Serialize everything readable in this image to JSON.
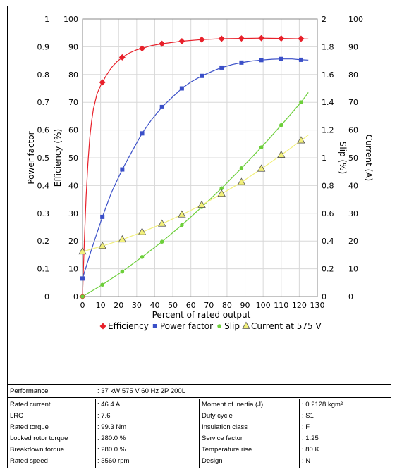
{
  "chart_data": {
    "type": "line",
    "xlabel": "Percent of rated output",
    "x_ticks": [
      "0",
      "10",
      "20",
      "30",
      "40",
      "50",
      "60",
      "70",
      "80",
      "90",
      "100",
      "110",
      "120",
      "130"
    ],
    "xlim": [
      0,
      130
    ],
    "axes": {
      "power_factor": {
        "label": "Power factor",
        "ticks": [
          "0",
          "0.1",
          "0.2",
          "0.3",
          "0.4",
          "0.5",
          "0.6",
          "0.7",
          "0.8",
          "0.9",
          "1"
        ],
        "range": [
          0,
          1
        ]
      },
      "efficiency": {
        "label": "Efficiency (%)",
        "ticks": [
          "0",
          "10",
          "20",
          "30",
          "40",
          "50",
          "60",
          "70",
          "80",
          "90",
          "100"
        ],
        "range": [
          0,
          100
        ]
      },
      "slip": {
        "label": "Slip (%)",
        "ticks": [
          "0",
          "0.2",
          "0.4",
          "0.6",
          "0.8",
          "1",
          "1.2",
          "1.4",
          "1.6",
          "1.8",
          "2"
        ],
        "range": [
          0,
          2
        ]
      },
      "current": {
        "label": "Current (A)",
        "ticks": [
          "0",
          "10",
          "20",
          "30",
          "40",
          "50",
          "60",
          "70",
          "80",
          "90",
          "100"
        ],
        "range": [
          0,
          100
        ]
      }
    },
    "series": [
      {
        "name": "Efficiency",
        "axis": "efficiency",
        "color": "#e8202a",
        "marker": "diamond",
        "points": [
          [
            0,
            0
          ],
          [
            11,
            77.2
          ],
          [
            22,
            86.2
          ],
          [
            33,
            89.4
          ],
          [
            44,
            91.1
          ],
          [
            55,
            92.0
          ],
          [
            66,
            92.6
          ],
          [
            77,
            92.9
          ],
          [
            88,
            93.0
          ],
          [
            99,
            93.1
          ],
          [
            110,
            93.0
          ],
          [
            121,
            92.9
          ]
        ],
        "curve": [
          [
            0,
            0
          ],
          [
            1,
            20
          ],
          [
            2,
            36
          ],
          [
            3,
            48
          ],
          [
            4,
            57
          ],
          [
            5,
            63
          ],
          [
            6,
            67.5
          ],
          [
            8,
            73
          ],
          [
            10,
            76
          ],
          [
            11,
            77.2
          ],
          [
            13,
            79.5
          ],
          [
            16,
            82.5
          ],
          [
            19,
            84.6
          ],
          [
            22,
            86.2
          ],
          [
            26,
            87.8
          ],
          [
            30,
            88.9
          ],
          [
            33,
            89.4
          ],
          [
            38,
            90.4
          ],
          [
            44,
            91.1
          ],
          [
            50,
            91.6
          ],
          [
            55,
            92.0
          ],
          [
            66,
            92.6
          ],
          [
            77,
            92.9
          ],
          [
            88,
            93.0
          ],
          [
            99,
            93.1
          ],
          [
            110,
            93.0
          ],
          [
            125,
            92.8
          ]
        ]
      },
      {
        "name": "Power factor",
        "axis": "power_factor",
        "color": "#3a4fc8",
        "marker": "square",
        "points": [
          [
            0,
            0.065
          ],
          [
            11,
            0.287
          ],
          [
            22,
            0.458
          ],
          [
            33,
            0.588
          ],
          [
            44,
            0.683
          ],
          [
            55,
            0.75
          ],
          [
            66,
            0.795
          ],
          [
            77,
            0.825
          ],
          [
            88,
            0.843
          ],
          [
            99,
            0.852
          ],
          [
            110,
            0.856
          ],
          [
            121,
            0.853
          ]
        ],
        "curve": [
          [
            0,
            0.065
          ],
          [
            5,
            0.17
          ],
          [
            11,
            0.287
          ],
          [
            16,
            0.375
          ],
          [
            22,
            0.458
          ],
          [
            28,
            0.53
          ],
          [
            33,
            0.588
          ],
          [
            38,
            0.635
          ],
          [
            44,
            0.683
          ],
          [
            50,
            0.72
          ],
          [
            55,
            0.75
          ],
          [
            60,
            0.773
          ],
          [
            66,
            0.795
          ],
          [
            72,
            0.812
          ],
          [
            77,
            0.825
          ],
          [
            83,
            0.836
          ],
          [
            88,
            0.843
          ],
          [
            94,
            0.849
          ],
          [
            99,
            0.852
          ],
          [
            105,
            0.855
          ],
          [
            110,
            0.856
          ],
          [
            116,
            0.856
          ],
          [
            121,
            0.853
          ],
          [
            125,
            0.852
          ]
        ]
      },
      {
        "name": "Slip",
        "axis": "slip",
        "color": "#6ccf3a",
        "marker": "circle",
        "points": [
          [
            0,
            0
          ],
          [
            11,
            0.085
          ],
          [
            22,
            0.18
          ],
          [
            33,
            0.285
          ],
          [
            44,
            0.395
          ],
          [
            55,
            0.515
          ],
          [
            66,
            0.645
          ],
          [
            77,
            0.78
          ],
          [
            88,
            0.925
          ],
          [
            99,
            1.075
          ],
          [
            110,
            1.235
          ],
          [
            121,
            1.4
          ]
        ],
        "curve": [
          [
            0,
            0
          ],
          [
            11,
            0.085
          ],
          [
            22,
            0.18
          ],
          [
            33,
            0.285
          ],
          [
            44,
            0.395
          ],
          [
            55,
            0.515
          ],
          [
            66,
            0.645
          ],
          [
            77,
            0.78
          ],
          [
            88,
            0.925
          ],
          [
            99,
            1.075
          ],
          [
            110,
            1.235
          ],
          [
            121,
            1.4
          ],
          [
            125,
            1.47
          ]
        ]
      },
      {
        "name": "Current at 575 V",
        "axis": "current",
        "color": "#f2f07a",
        "marker": "triangle",
        "points": [
          [
            0,
            16.2
          ],
          [
            11,
            18.2
          ],
          [
            22,
            20.5
          ],
          [
            33,
            23.2
          ],
          [
            44,
            26.2
          ],
          [
            55,
            29.5
          ],
          [
            66,
            33.0
          ],
          [
            77,
            37.0
          ],
          [
            88,
            41.2
          ],
          [
            99,
            46.0
          ],
          [
            110,
            51.0
          ],
          [
            121,
            56.2
          ]
        ],
        "curve": [
          [
            0,
            16.2
          ],
          [
            11,
            18.2
          ],
          [
            22,
            20.5
          ],
          [
            33,
            23.2
          ],
          [
            44,
            26.2
          ],
          [
            55,
            29.5
          ],
          [
            66,
            33.0
          ],
          [
            77,
            37.0
          ],
          [
            88,
            41.2
          ],
          [
            99,
            46.0
          ],
          [
            110,
            51.0
          ],
          [
            121,
            56.2
          ],
          [
            125,
            58.2
          ]
        ]
      }
    ]
  },
  "info": {
    "performance_label": "Performance",
    "performance_value": ": 37 kW 575 V 60 Hz 2P 200L",
    "rows": [
      {
        "l_label": "Rated current",
        "l_value": ": 46.4 A",
        "r_label": "Moment of inertia (J)",
        "r_value": ": 0.2128 kgm²"
      },
      {
        "l_label": "LRC",
        "l_value": ": 7.6",
        "r_label": "Duty cycle",
        "r_value": ": S1"
      },
      {
        "l_label": "Rated torque",
        "l_value": ": 99.3 Nm",
        "r_label": "Insulation class",
        "r_value": ": F"
      },
      {
        "l_label": "Locked rotor torque",
        "l_value": ": 280.0 %",
        "r_label": "Service factor",
        "r_value": ": 1.25"
      },
      {
        "l_label": "Breakdown torque",
        "l_value": ": 280.0 %",
        "r_label": "Temperature rise",
        "r_value": ": 80 K"
      },
      {
        "l_label": "Rated speed",
        "l_value": ": 3560 rpm",
        "r_label": "Design",
        "r_value": ": N"
      }
    ]
  }
}
